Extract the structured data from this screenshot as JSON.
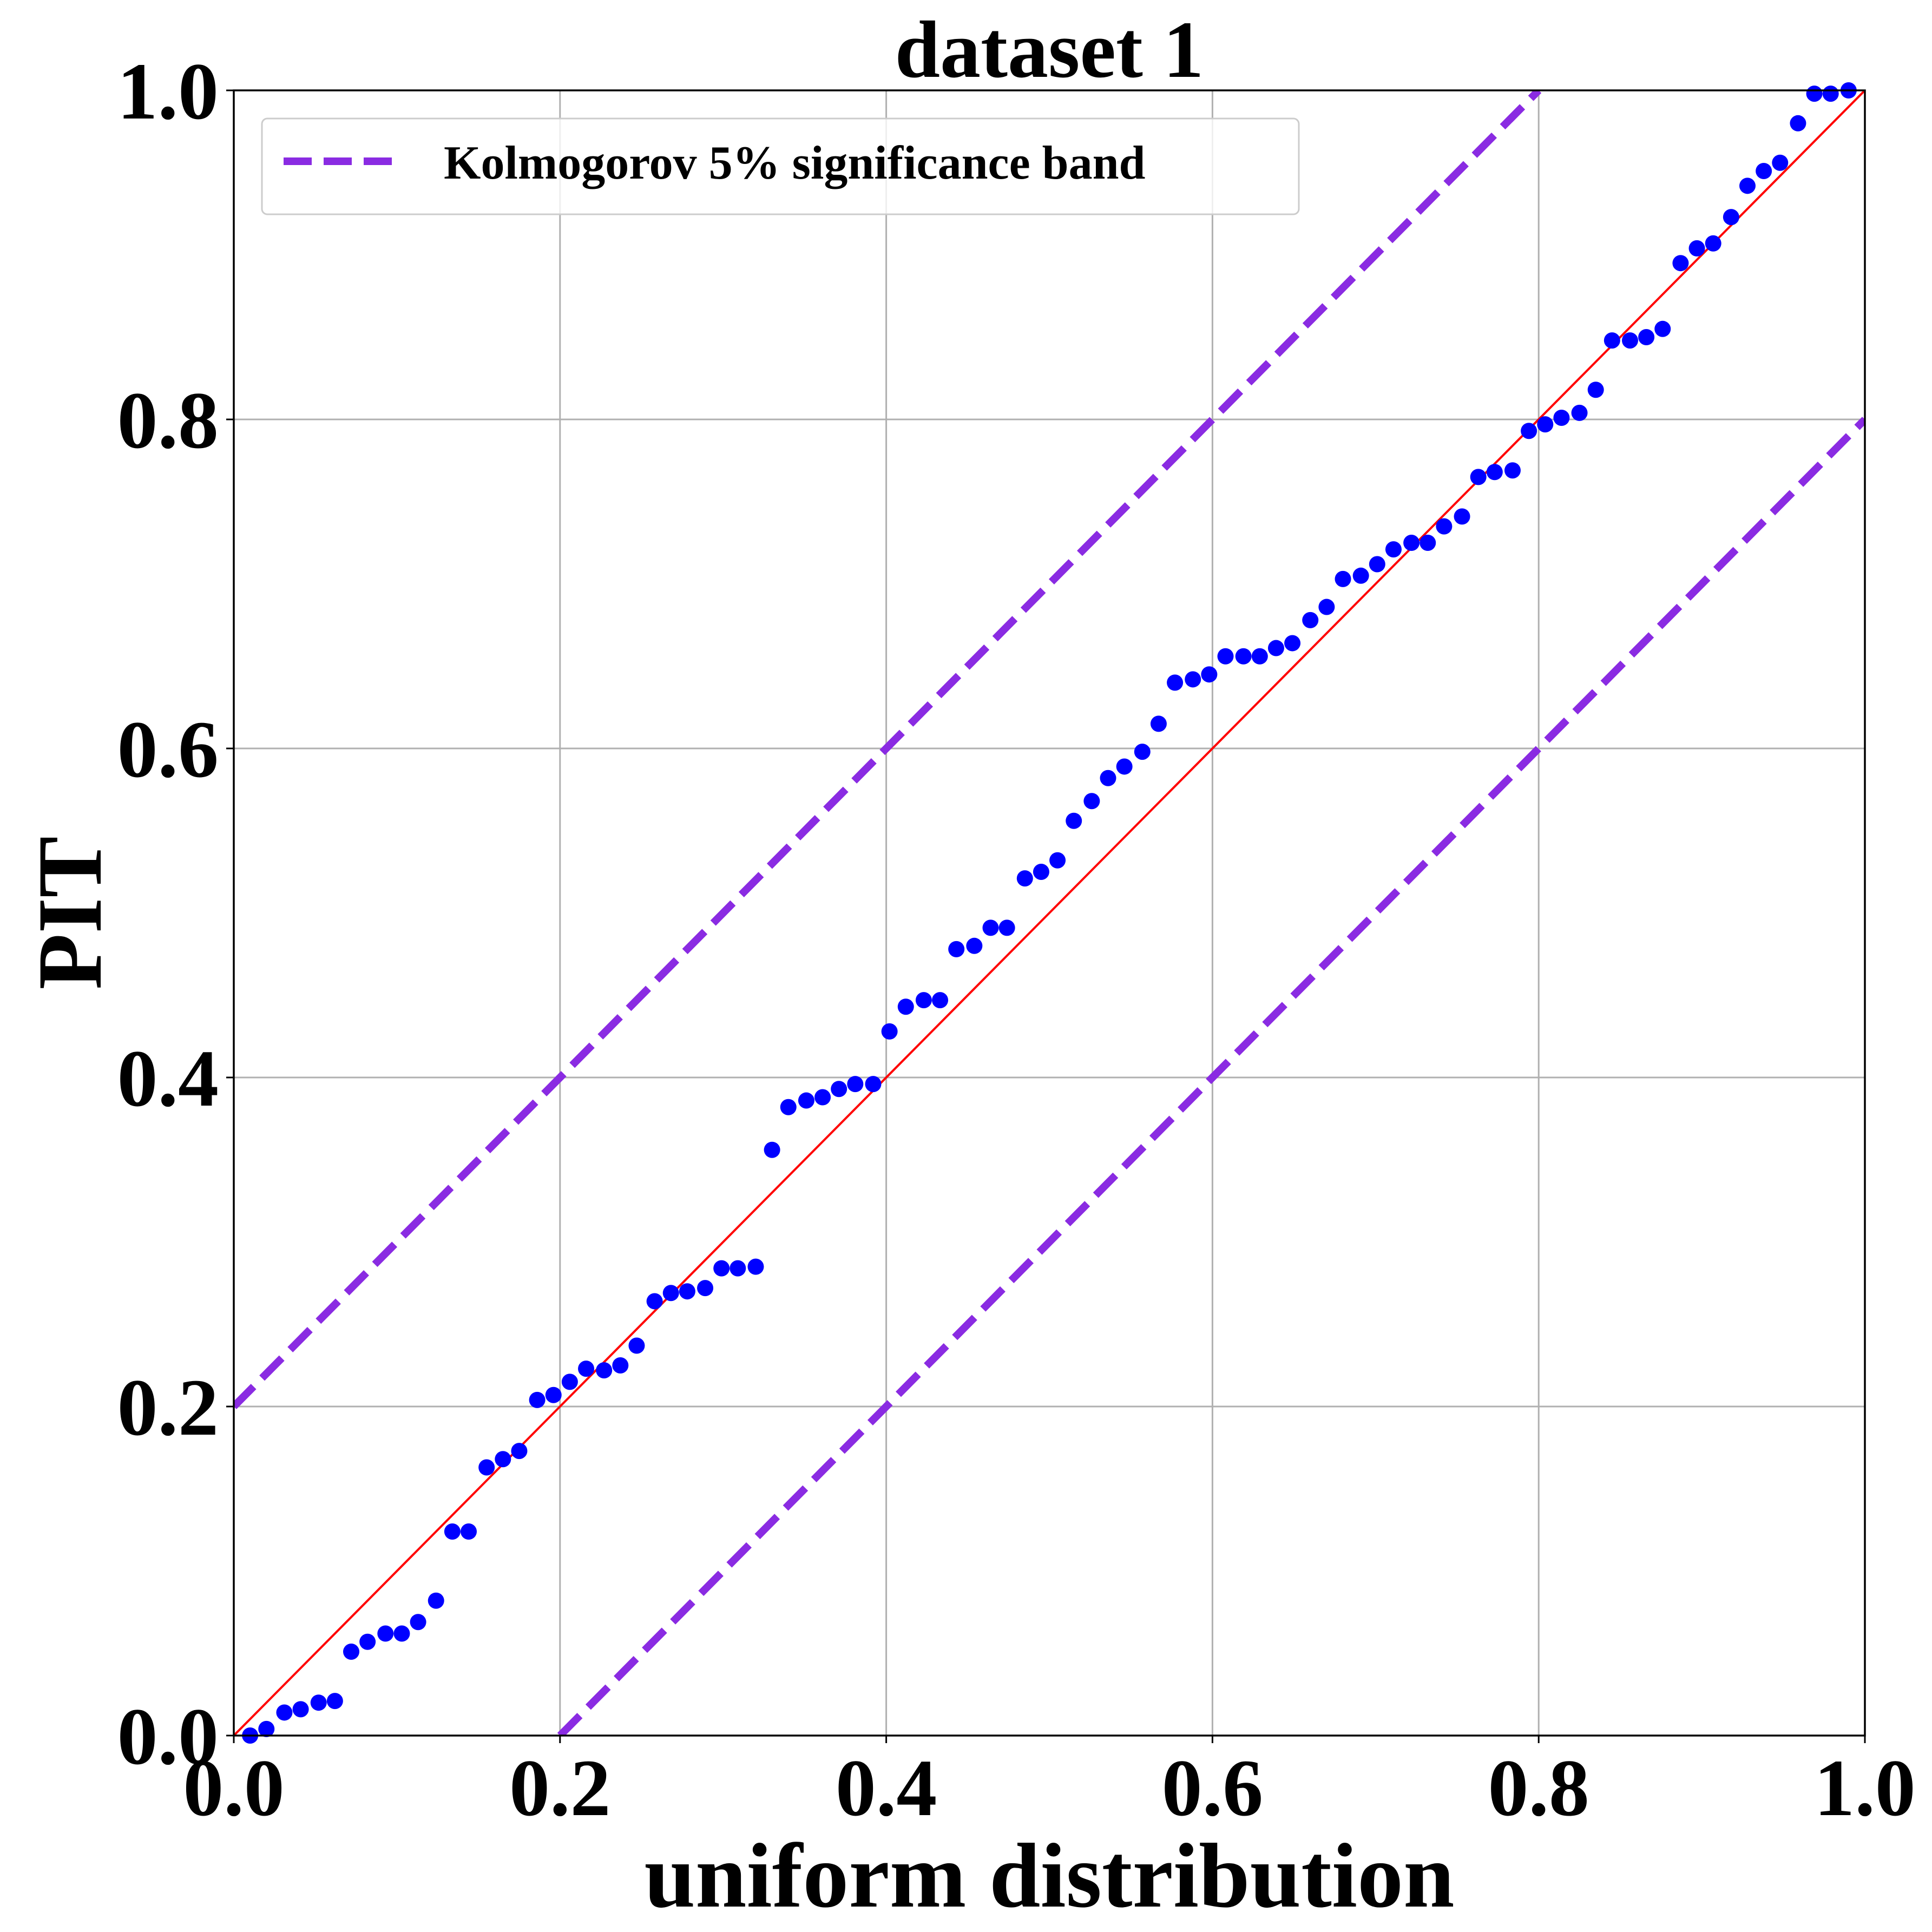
{
  "chart_data": {
    "type": "scatter",
    "title": "dataset 1",
    "xlabel": "uniform distribution",
    "ylabel": "PIT",
    "xlim": [
      0.0,
      1.0
    ],
    "ylim": [
      0.0,
      1.0
    ],
    "grid": true,
    "legend_position": "top-left",
    "xticks": [
      "0.0",
      "0.2",
      "0.4",
      "0.6",
      "0.8",
      "1.0"
    ],
    "yticks": [
      "0.0",
      "0.2",
      "0.4",
      "0.6",
      "0.8",
      "1.0"
    ],
    "colors": {
      "points": "#0000ff",
      "reference": "#ff0000",
      "band": "#8a2be2",
      "grid": "#b0b0b0"
    },
    "series": [
      {
        "kind": "points",
        "x": [
          0.01,
          0.02,
          0.031,
          0.041,
          0.052,
          0.062,
          0.072,
          0.082,
          0.093,
          0.103,
          0.113,
          0.124,
          0.134,
          0.144,
          0.155,
          0.165,
          0.175,
          0.186,
          0.196,
          0.206,
          0.216,
          0.227,
          0.237,
          0.247,
          0.258,
          0.268,
          0.278,
          0.289,
          0.299,
          0.309,
          0.32,
          0.33,
          0.34,
          0.351,
          0.361,
          0.371,
          0.381,
          0.392,
          0.402,
          0.412,
          0.423,
          0.433,
          0.443,
          0.454,
          0.464,
          0.474,
          0.485,
          0.495,
          0.505,
          0.515,
          0.526,
          0.536,
          0.546,
          0.557,
          0.567,
          0.577,
          0.588,
          0.598,
          0.608,
          0.619,
          0.629,
          0.639,
          0.649,
          0.66,
          0.67,
          0.68,
          0.691,
          0.701,
          0.711,
          0.722,
          0.732,
          0.742,
          0.753,
          0.763,
          0.773,
          0.784,
          0.794,
          0.804,
          0.814,
          0.825,
          0.835,
          0.845,
          0.856,
          0.866,
          0.876,
          0.887,
          0.897,
          0.907,
          0.918,
          0.928,
          0.938,
          0.948,
          0.959,
          0.969,
          0.979,
          0.99
        ],
        "y": [
          0.0,
          0.004,
          0.014,
          0.016,
          0.02,
          0.021,
          0.051,
          0.057,
          0.062,
          0.062,
          0.069,
          0.082,
          0.124,
          0.124,
          0.163,
          0.168,
          0.173,
          0.204,
          0.207,
          0.215,
          0.223,
          0.222,
          0.225,
          0.237,
          0.264,
          0.269,
          0.27,
          0.272,
          0.284,
          0.284,
          0.285,
          0.356,
          0.382,
          0.386,
          0.388,
          0.393,
          0.396,
          0.396,
          0.428,
          0.443,
          0.447,
          0.447,
          0.478,
          0.48,
          0.491,
          0.491,
          0.521,
          0.525,
          0.532,
          0.556,
          0.568,
          0.582,
          0.589,
          0.598,
          0.615,
          0.64,
          0.642,
          0.645,
          0.656,
          0.656,
          0.656,
          0.661,
          0.664,
          0.678,
          0.686,
          0.703,
          0.705,
          0.712,
          0.721,
          0.725,
          0.725,
          0.735,
          0.741,
          0.765,
          0.768,
          0.769,
          0.793,
          0.797,
          0.801,
          0.804,
          0.818,
          0.848,
          0.848,
          0.85,
          0.855,
          0.895,
          0.904,
          0.907,
          0.923,
          0.942,
          0.951,
          0.956,
          0.98,
          0.998,
          0.998,
          1.0
        ]
      },
      {
        "kind": "line",
        "style": "solid",
        "x": [
          0.0,
          1.0
        ],
        "y": [
          0.0,
          1.0
        ]
      },
      {
        "kind": "line",
        "style": "dashed",
        "name": "Kolmogorov 5% significance band",
        "x": [
          0.0,
          0.8
        ],
        "y": [
          0.2,
          1.0
        ]
      },
      {
        "kind": "line",
        "style": "dashed",
        "x": [
          0.2,
          1.0
        ],
        "y": [
          0.0,
          0.8
        ]
      }
    ]
  }
}
